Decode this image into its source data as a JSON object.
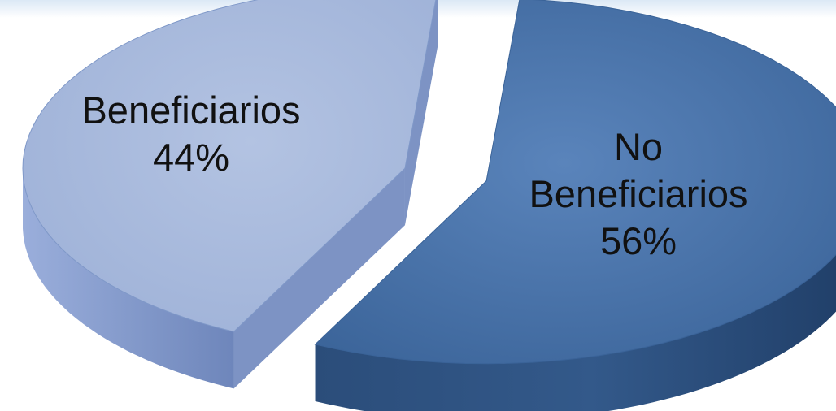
{
  "chart_data": {
    "type": "pie",
    "exploded": true,
    "three_d": true,
    "title": "",
    "slices": [
      {
        "name": "Beneficiarios",
        "value": 44,
        "label_text": "44%",
        "color_top": "#9fb2d8",
        "color_top_edge": "#7f98c8",
        "color_side": "#7d93c4"
      },
      {
        "name": "No Beneficiarios",
        "name_lines": [
          "No",
          "Beneficiarios"
        ],
        "value": 56,
        "label_text": "56%",
        "color_top": "#4f78ad",
        "color_top_edge": "#3a6398",
        "color_side": "#2f5482"
      }
    ],
    "legend": "none",
    "units": "%"
  },
  "background": {
    "top_band_color": "#dbe8f5"
  }
}
